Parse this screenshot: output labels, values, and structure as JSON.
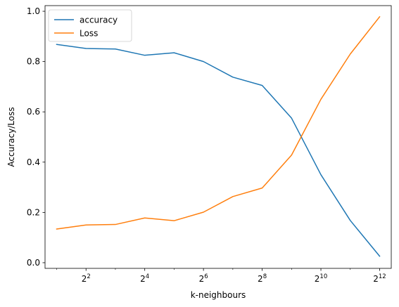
{
  "chart_data": {
    "type": "line",
    "title": "",
    "xlabel": "k-neighbours",
    "ylabel": "Accuracy/Loss",
    "x_scale": "log2",
    "x": [
      2,
      4,
      8,
      16,
      32,
      64,
      128,
      256,
      512,
      1024,
      2048,
      4096
    ],
    "xlim": [
      1.52,
      5390
    ],
    "ylim": [
      -0.0225,
      1.0225
    ],
    "x_ticks": [
      {
        "value": 4,
        "base": "2",
        "exp": "2"
      },
      {
        "value": 16,
        "base": "2",
        "exp": "4"
      },
      {
        "value": 64,
        "base": "2",
        "exp": "6"
      },
      {
        "value": 256,
        "base": "2",
        "exp": "8"
      },
      {
        "value": 1024,
        "base": "2",
        "exp": "10"
      },
      {
        "value": 4096,
        "base": "2",
        "exp": "12"
      }
    ],
    "y_ticks": [
      {
        "value": 0.0,
        "label": "0.0"
      },
      {
        "value": 0.2,
        "label": "0.2"
      },
      {
        "value": 0.4,
        "label": "0.4"
      },
      {
        "value": 0.6,
        "label": "0.6"
      },
      {
        "value": 0.8,
        "label": "0.8"
      },
      {
        "value": 1.0,
        "label": "1.0"
      }
    ],
    "grid": false,
    "legend_position": "top-left",
    "series": [
      {
        "name": "accuracy",
        "color": "#1f77b4",
        "values": [
          0.868,
          0.852,
          0.85,
          0.825,
          0.835,
          0.8,
          0.738,
          0.705,
          0.575,
          0.35,
          0.168,
          0.026
        ]
      },
      {
        "name": "Loss",
        "color": "#ff7f0e",
        "values": [
          0.134,
          0.15,
          0.152,
          0.178,
          0.167,
          0.201,
          0.263,
          0.297,
          0.428,
          0.65,
          0.83,
          0.978
        ]
      }
    ]
  }
}
